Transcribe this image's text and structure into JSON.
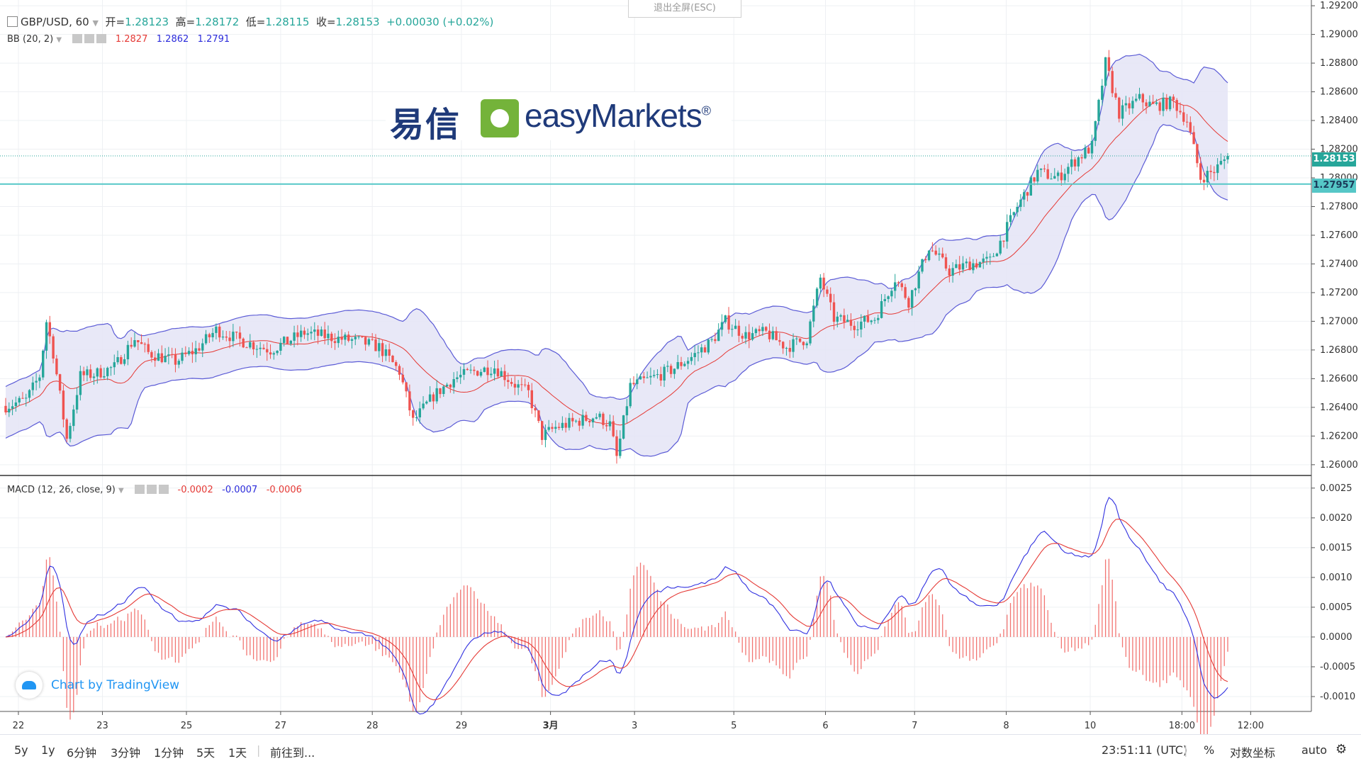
{
  "exit_fullscreen": "退出全屏(ESC)",
  "legend": {
    "symbol": "GBP/USD, 60",
    "open_label": "开=",
    "open": "1.28123",
    "high_label": "高=",
    "high": "1.28172",
    "low_label": "低=",
    "low": "1.28115",
    "close_label": "收=",
    "close": "1.28153",
    "change": "+0.00030 (+0.02%)"
  },
  "bb": {
    "label": "BB (20, 2)",
    "mid": "1.2827",
    "upper": "1.2862",
    "lower": "1.2791"
  },
  "macd_legend": {
    "label": "MACD (12, 26, close, 9)",
    "hist": "-0.0002",
    "macd": "-0.0007",
    "signal": "-0.0006"
  },
  "logo": {
    "cn": "易信",
    "en": "easyMarkets",
    "reg": "®"
  },
  "watermark": "Chart by TradingView",
  "price_tags": {
    "last": "1.28153",
    "line": "1.27957"
  },
  "colors": {
    "up": "#26a69a",
    "down": "#ef5350",
    "bb_band": "#5b5bd6",
    "bb_fill": "#e4e4f6",
    "bb_mid": "#e53935",
    "macd_line": "#3030e0",
    "signal_line": "#e53935",
    "hline": "#56c7c7"
  },
  "toolbar": {
    "ranges": [
      "5y",
      "1y",
      "6分钟",
      "3分钟",
      "1分钟",
      "5天",
      "1天"
    ],
    "goto": "前往到...",
    "time": "23:51:11 (UTC)",
    "percent": "%",
    "log": "对数坐标",
    "auto": "auto",
    "gear_icon": "gear-icon"
  },
  "chart_data": [
    {
      "type": "candlestick",
      "title": "GBP/USD, 60",
      "x_tick_labels": [
        "22",
        "23",
        "25",
        "27",
        "28",
        "29",
        "3月",
        "3",
        "5",
        "6",
        "7",
        "8",
        "10",
        "18:00",
        "12:00"
      ],
      "y_tick_labels": [
        "1.29200",
        "1.29000",
        "1.28800",
        "1.28600",
        "1.28400",
        "1.28200",
        "1.28000",
        "1.27800",
        "1.27600",
        "1.27400",
        "1.27200",
        "1.27000",
        "1.26800",
        "1.26600",
        "1.26400",
        "1.26200",
        "1.26000"
      ],
      "ylim": [
        1.2593,
        1.2924
      ],
      "hline": 1.27957,
      "last_close": 1.28153,
      "waypoints": [
        [
          0,
          1.2641
        ],
        [
          6,
          1.2645
        ],
        [
          10,
          1.2662
        ],
        [
          12,
          1.27
        ],
        [
          14,
          1.2678
        ],
        [
          18,
          1.2618
        ],
        [
          22,
          1.2662
        ],
        [
          26,
          1.2663
        ],
        [
          32,
          1.2668
        ],
        [
          38,
          1.2688
        ],
        [
          42,
          1.2678
        ],
        [
          50,
          1.2672
        ],
        [
          56,
          1.268
        ],
        [
          62,
          1.2694
        ],
        [
          70,
          1.2686
        ],
        [
          78,
          1.268
        ],
        [
          88,
          1.2692
        ],
        [
          98,
          1.2688
        ],
        [
          104,
          1.2686
        ],
        [
          110,
          1.2682
        ],
        [
          116,
          1.2665
        ],
        [
          120,
          1.263
        ],
        [
          126,
          1.2648
        ],
        [
          132,
          1.266
        ],
        [
          138,
          1.2665
        ],
        [
          144,
          1.2668
        ],
        [
          150,
          1.2656
        ],
        [
          154,
          1.265
        ],
        [
          158,
          1.262
        ],
        [
          162,
          1.2626
        ],
        [
          168,
          1.263
        ],
        [
          174,
          1.2634
        ],
        [
          178,
          1.2628
        ],
        [
          180,
          1.2605
        ],
        [
          184,
          1.2655
        ],
        [
          190,
          1.266
        ],
        [
          196,
          1.2666
        ],
        [
          202,
          1.2675
        ],
        [
          208,
          1.2686
        ],
        [
          212,
          1.27
        ],
        [
          218,
          1.269
        ],
        [
          224,
          1.2692
        ],
        [
          230,
          1.2682
        ],
        [
          236,
          1.2688
        ],
        [
          240,
          1.273
        ],
        [
          244,
          1.2702
        ],
        [
          250,
          1.2698
        ],
        [
          256,
          1.2702
        ],
        [
          262,
          1.273
        ],
        [
          266,
          1.2714
        ],
        [
          272,
          1.2752
        ],
        [
          278,
          1.2735
        ],
        [
          284,
          1.274
        ],
        [
          290,
          1.2742
        ],
        [
          294,
          1.276
        ],
        [
          298,
          1.278
        ],
        [
          304,
          1.2804
        ],
        [
          310,
          1.28
        ],
        [
          314,
          1.281
        ],
        [
          320,
          1.2822
        ],
        [
          324,
          1.288
        ],
        [
          328,
          1.2845
        ],
        [
          334,
          1.2855
        ],
        [
          338,
          1.285
        ],
        [
          344,
          1.2853
        ],
        [
          348,
          1.284
        ],
        [
          352,
          1.28
        ],
        [
          356,
          1.2805
        ],
        [
          360,
          1.2815
        ]
      ]
    },
    {
      "type": "macd",
      "title": "MACD (12, 26, close, 9)",
      "y_tick_labels": [
        "0.0025",
        "0.0020",
        "0.0015",
        "0.0010",
        "0.0005",
        "0.0000",
        "-0.0005",
        "-0.0010"
      ],
      "ylim": [
        -0.00125,
        0.0027
      ]
    }
  ]
}
